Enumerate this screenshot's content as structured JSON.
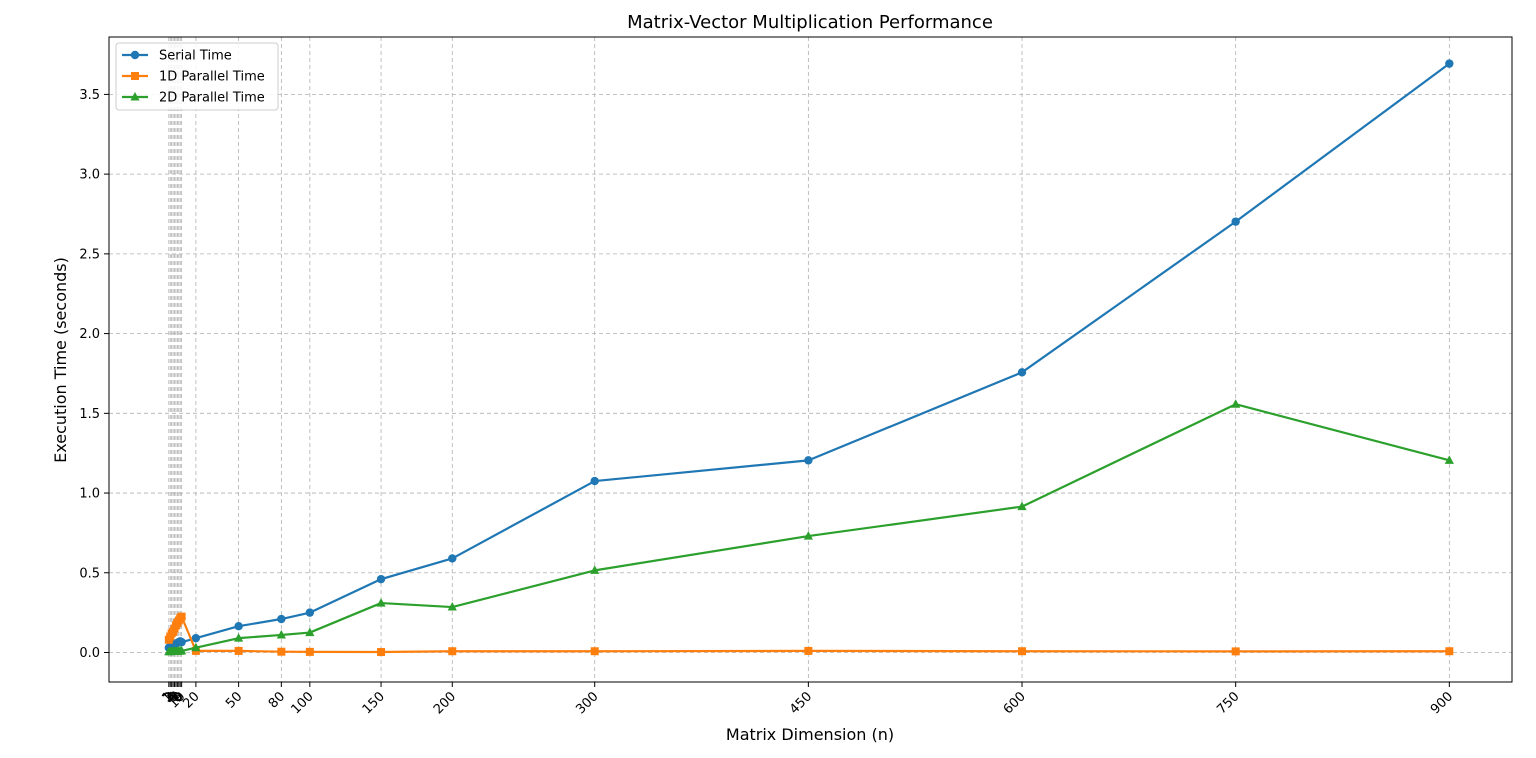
{
  "chart_data": {
    "type": "line",
    "title": "Matrix-Vector Multiplication Performance",
    "xlabel": "Matrix Dimension (n)",
    "ylabel": "Execution Time (seconds)",
    "x": [
      1,
      2,
      3,
      4,
      5,
      6,
      7,
      8,
      9,
      10,
      20,
      50,
      80,
      100,
      150,
      200,
      300,
      450,
      600,
      750,
      900
    ],
    "x_ticks": [
      "1",
      "2",
      "3",
      "4",
      "5",
      "6",
      "7",
      "8",
      "9",
      "10",
      "20",
      "50",
      "80",
      "100",
      "150",
      "200",
      "300",
      "450",
      "600",
      "750",
      "900"
    ],
    "y_ticks": [
      "0.0",
      "0.5",
      "1.0",
      "1.5",
      "2.0",
      "2.5",
      "3.0",
      "3.5"
    ],
    "xlim": [
      -41,
      944
    ],
    "ylim": [
      -0.185,
      3.86
    ],
    "grid": true,
    "legend_position": "top-left",
    "series": [
      {
        "name": "Serial Time",
        "color": "#1f77b4",
        "marker": "circle",
        "values": [
          0.03,
          0.035,
          0.04,
          0.045,
          0.05,
          0.055,
          0.06,
          0.065,
          0.07,
          0.065,
          0.09,
          0.165,
          0.21,
          0.25,
          0.46,
          0.59,
          1.075,
          1.205,
          1.757,
          2.702,
          3.693
        ]
      },
      {
        "name": "1D Parallel Time",
        "color": "#ff7f0e",
        "marker": "square",
        "values": [
          0.08,
          0.1,
          0.12,
          0.13,
          0.15,
          0.17,
          0.185,
          0.2,
          0.215,
          0.225,
          0.01,
          0.01,
          0.005,
          0.004,
          0.003,
          0.008,
          0.008,
          0.01,
          0.008,
          0.007,
          0.008
        ]
      },
      {
        "name": "2D Parallel Time",
        "color": "#2ca02c",
        "marker": "triangle",
        "values": [
          0.005,
          0.005,
          0.006,
          0.006,
          0.007,
          0.007,
          0.008,
          0.008,
          0.009,
          0.01,
          0.03,
          0.09,
          0.11,
          0.125,
          0.31,
          0.285,
          0.515,
          0.73,
          0.915,
          1.557,
          1.205
        ]
      }
    ]
  }
}
